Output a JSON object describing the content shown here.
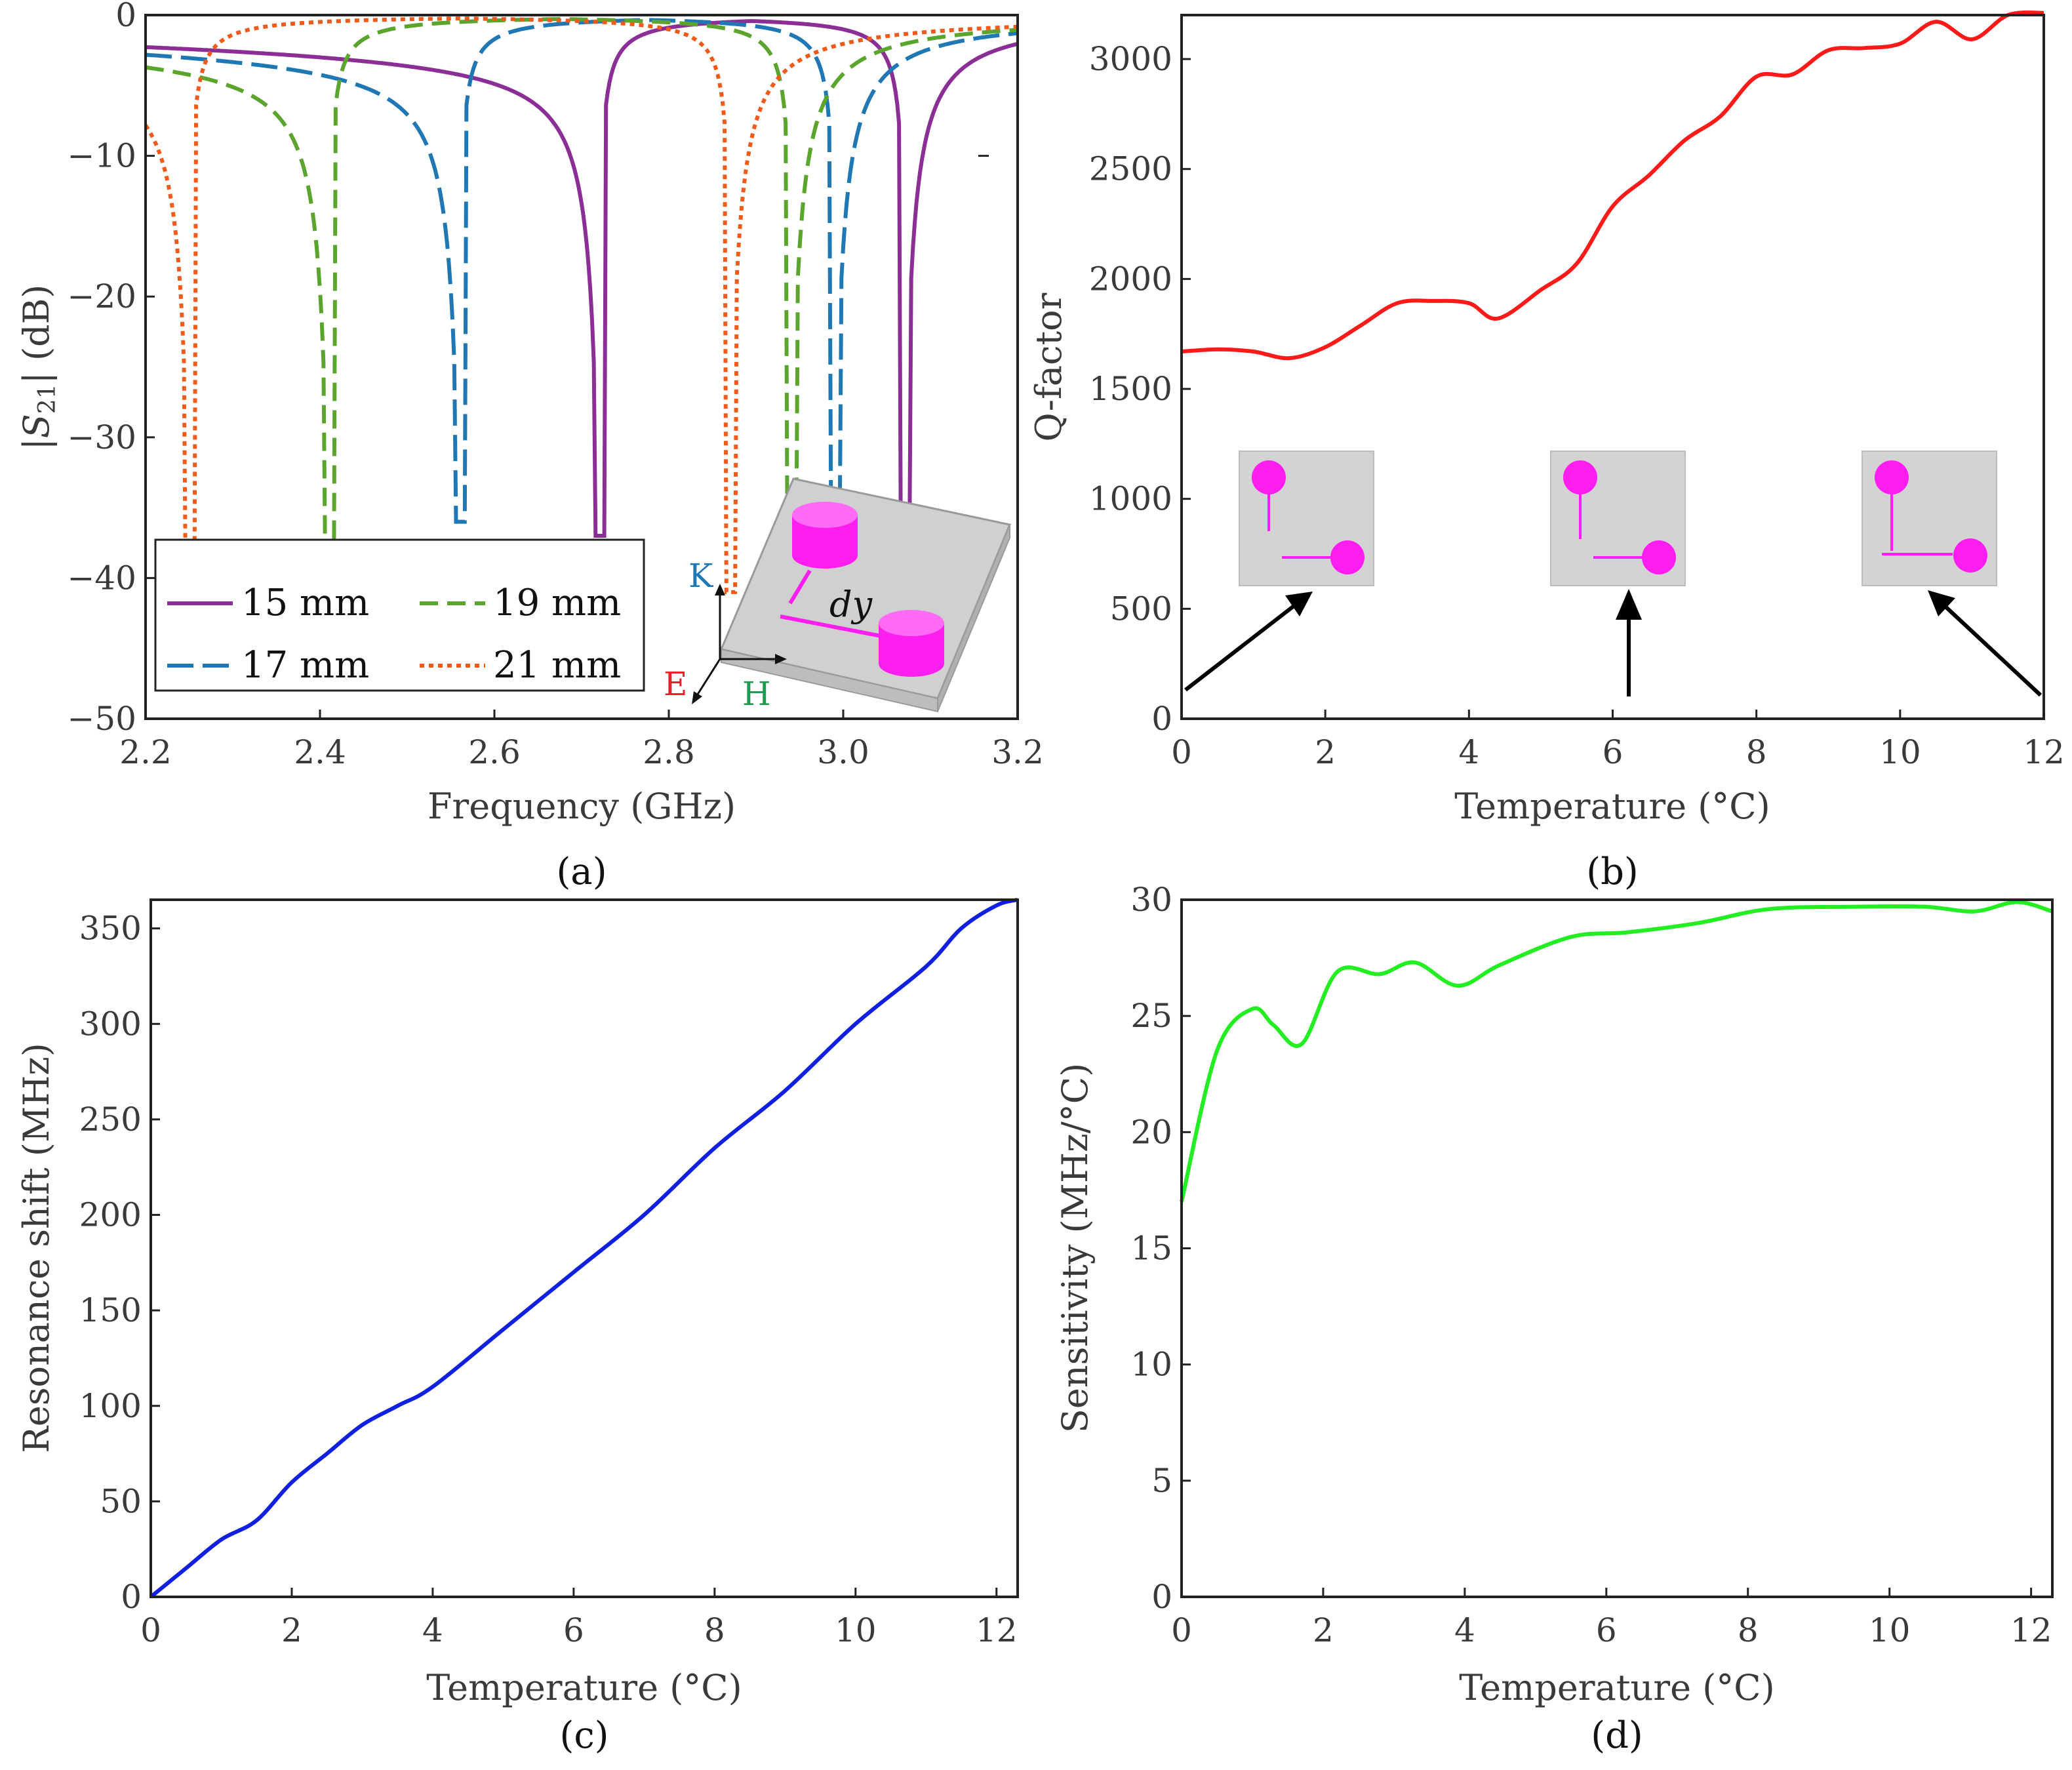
{
  "chart_data": [
    {
      "id": "a",
      "type": "line",
      "caption": "(a)",
      "xlabel": "Frequency (GHz)",
      "ylabel_parts": [
        "|",
        "S",
        "21",
        "|",
        " (dB)"
      ],
      "xlim": [
        2.2,
        3.2
      ],
      "ylim": [
        -50,
        0
      ],
      "xticks": [
        2.2,
        2.4,
        2.6,
        2.8,
        3.0,
        3.2
      ],
      "xtick_labels": [
        "2.2",
        "2.4",
        "2.6",
        "2.8",
        "3.0",
        "3.2"
      ],
      "yticks": [
        0,
        -10,
        -20,
        -30,
        -40,
        -50
      ],
      "ytick_labels": [
        "0",
        "−10",
        "−20",
        "−30",
        "−40",
        "−50"
      ],
      "series": [
        {
          "name": "15 mm",
          "color": "#8B2F97",
          "dash": "solid",
          "resonances": [
            2.72,
            3.07
          ],
          "min_db": -37
        },
        {
          "name": "17 mm",
          "color": "#1F77B4",
          "dash": "long",
          "resonances": [
            2.56,
            2.99
          ],
          "min_db": -36
        },
        {
          "name": "19 mm",
          "color": "#5BA52E",
          "dash": "medium",
          "resonances": [
            2.41,
            2.94
          ],
          "min_db": -39
        },
        {
          "name": "21 mm",
          "color": "#F05A1A",
          "dash": "dotted",
          "resonances": [
            2.25,
            2.87
          ],
          "min_db": -41
        }
      ],
      "legend": {
        "entries": [
          "15 mm",
          "19 mm",
          "17 mm",
          "21 mm"
        ],
        "location": "lower-left"
      },
      "inset": {
        "axis_k": "K",
        "axis_e": "E",
        "axis_h": "H",
        "dim_label": "dy",
        "k_color": "#1F77B4",
        "e_color": "#E8202A",
        "h_color": "#1E9B50",
        "accent": "#FF1EF0"
      }
    },
    {
      "id": "b",
      "type": "line",
      "caption": "(b)",
      "xlabel": "Temperature (°C)",
      "ylabel": "Q-factor",
      "xlim": [
        0,
        12
      ],
      "ylim": [
        0,
        3200
      ],
      "xticks": [
        0,
        2,
        4,
        6,
        8,
        10,
        12
      ],
      "xtick_labels": [
        "0",
        "2",
        "4",
        "6",
        "8",
        "10",
        "12"
      ],
      "yticks": [
        0,
        500,
        1000,
        1500,
        2000,
        2500,
        3000
      ],
      "ytick_labels": [
        "0",
        "500",
        "1000",
        "1500",
        "2000",
        "2500",
        "3000"
      ],
      "color": "#FF1A1A",
      "x": [
        0,
        0.5,
        1,
        1.5,
        2,
        2.5,
        3,
        3.5,
        4,
        4.4,
        5,
        5.5,
        6,
        6.5,
        7,
        7.5,
        8,
        8.5,
        9,
        9.5,
        10,
        10.5,
        11,
        11.5,
        12
      ],
      "y": [
        1670,
        1680,
        1670,
        1640,
        1690,
        1790,
        1890,
        1900,
        1890,
        1820,
        1950,
        2070,
        2330,
        2470,
        2630,
        2740,
        2920,
        2930,
        3040,
        3050,
        3070,
        3170,
        3090,
        3200,
        3210
      ],
      "inset_markers": 3
    },
    {
      "id": "c",
      "type": "line",
      "caption": "(c)",
      "xlabel": "Temperature (°C)",
      "ylabel": "Resonance shift (MHz)",
      "xlim": [
        0,
        12.3
      ],
      "ylim": [
        0,
        365
      ],
      "xticks": [
        0,
        2,
        4,
        6,
        8,
        10,
        12
      ],
      "xtick_labels": [
        "0",
        "2",
        "4",
        "6",
        "8",
        "10",
        "12"
      ],
      "yticks": [
        0,
        50,
        100,
        150,
        200,
        250,
        300,
        350
      ],
      "ytick_labels": [
        "0",
        "50",
        "100",
        "150",
        "200",
        "250",
        "300",
        "350"
      ],
      "color": "#1020E0",
      "x": [
        0,
        0.5,
        1,
        1.5,
        2,
        2.5,
        3,
        3.5,
        4,
        5,
        6,
        7,
        8,
        9,
        10,
        11,
        11.5,
        12,
        12.3
      ],
      "y": [
        0,
        15,
        30,
        40,
        60,
        75,
        90,
        100,
        110,
        140,
        170,
        200,
        235,
        265,
        300,
        330,
        350,
        362,
        365
      ]
    },
    {
      "id": "d",
      "type": "line",
      "caption": "(d)",
      "xlabel": "Temperature (°C)",
      "ylabel": "Sensitivity (MHz/°C)",
      "xlim": [
        0,
        12.3
      ],
      "ylim": [
        0,
        30
      ],
      "xticks": [
        0,
        2,
        4,
        6,
        8,
        10,
        12
      ],
      "xtick_labels": [
        "0",
        "2",
        "4",
        "6",
        "8",
        "10",
        "12"
      ],
      "yticks": [
        0,
        5,
        10,
        15,
        20,
        25,
        30
      ],
      "ytick_labels": [
        "0",
        "5",
        "10",
        "15",
        "20",
        "25",
        "30"
      ],
      "color": "#22EE22",
      "x": [
        0,
        0.5,
        1,
        1.3,
        1.7,
        2.2,
        2.8,
        3.3,
        3.9,
        4.5,
        5.5,
        6.3,
        7.3,
        8.3,
        9.5,
        10.5,
        11.2,
        11.8,
        12.3
      ],
      "y": [
        17,
        23.5,
        25.3,
        24.6,
        23.8,
        26.9,
        26.8,
        27.3,
        26.3,
        27.2,
        28.4,
        28.6,
        29.0,
        29.6,
        29.7,
        29.7,
        29.5,
        29.9,
        29.5
      ]
    }
  ]
}
